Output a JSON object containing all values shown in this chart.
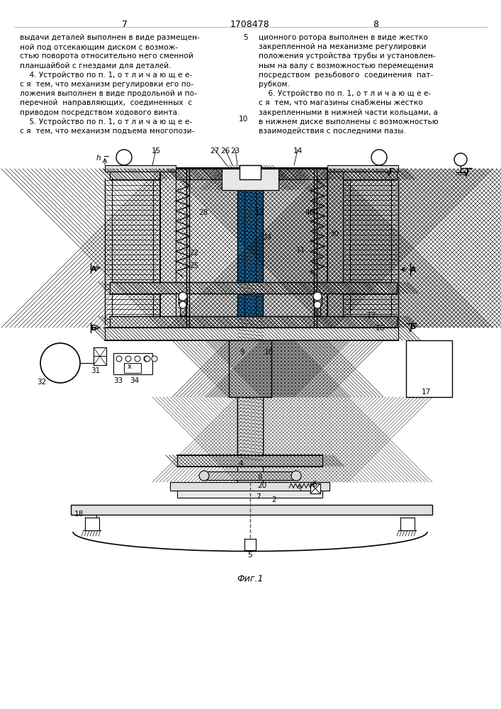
{
  "page_number_left": "7",
  "page_number_center": "1708478",
  "page_number_right": "8",
  "background_color": "#ffffff",
  "figure_caption": "Фиг.1",
  "left_col_text": [
    "выдачи деталей выполнен в виде размещен-",
    "ной под отсекающим диском с возмож-",
    "стью поворота относительно него сменной",
    "планшайбой с гнездами для деталей.",
    "    4. Устройство по п. 1, о т л и ч а ю щ е е-",
    "с я  тем, что механизм регулировки его по-",
    "ложения выполнен в виде продольной и по-",
    "перечной  направляющих,  соединенных  с",
    "приводом посредством ходового винта.",
    "    5. Устройство по п. 1, о т л и ч а ю щ е е-",
    "с я  тем, что механизм подъема многопози-"
  ],
  "right_col_text": [
    "ционного ротора выполнен в виде жестко",
    "закрепленной на механизме регулировки",
    "положения устройства трубы и установлен-",
    "ным на валу с возможностью перемещения",
    "посредством  резьбового  соединения  пат-",
    "рубком.",
    "    6. Устройство по п. 1, о т л и ч а ю щ е е-",
    "с я  тем, что магазины снабжены жестко",
    "закрепленными в нижней части кольцами, а",
    "в нижнем диске выполнены с возможностью",
    "взаимодействия с последними пазы."
  ]
}
